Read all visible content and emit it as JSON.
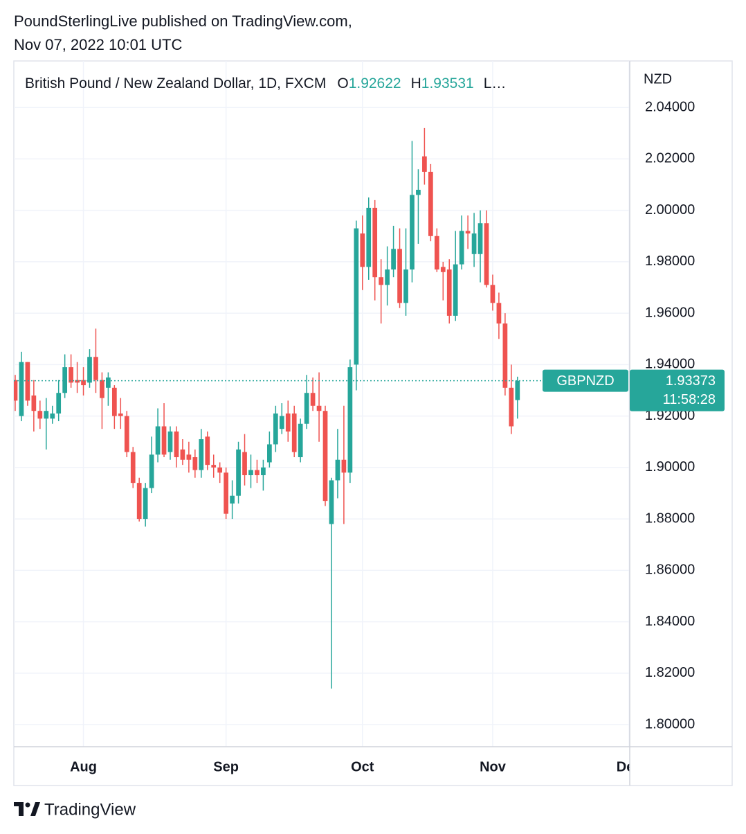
{
  "header": {
    "line1": "PoundSterlingLive published on TradingView.com,",
    "line2": "Nov 07, 2022 10:01 UTC"
  },
  "chart_data": {
    "type": "candlestick",
    "title": "British Pound / New Zealand Dollar, 1D, FXCM",
    "ohlc_labels": [
      "O",
      "H",
      "L…"
    ],
    "y_axis_label": "NZD",
    "symbol": "GBPNZD",
    "countdown": "11:58:28",
    "up_color": "#26a69a",
    "down_color": "#ef5350",
    "open": [
      1.934,
      1.92,
      1.941,
      1.928,
      1.922,
      1.919,
      1.919,
      1.921,
      1.929,
      1.939,
      1.934,
      1.934,
      1.933,
      1.943,
      1.934,
      1.931,
      1.931,
      1.921,
      1.92,
      1.906,
      1.894,
      1.88,
      1.892,
      1.905,
      1.916,
      1.906,
      1.914,
      1.907,
      1.905,
      1.904,
      1.899,
      1.912,
      1.901,
      1.9,
      1.898,
      1.886,
      1.889,
      1.906,
      1.897,
      1.899,
      1.897,
      1.902,
      1.909,
      1.915,
      1.921,
      1.921,
      1.904,
      1.917,
      1.929,
      1.924,
      1.922,
      1.878,
      1.895,
      1.903,
      1.898,
      1.94,
      1.991,
      1.978,
      2.001,
      1.974,
      1.971,
      1.977,
      1.985,
      1.964,
      1.977,
      2.006,
      2.021,
      2.015,
      1.99,
      1.978,
      1.977,
      1.959,
      1.979,
      1.992,
      1.983,
      1.983,
      1.995,
      1.971,
      1.964,
      1.956,
      1.931,
      1.92622
    ],
    "high": [
      1.936,
      1.945,
      1.941,
      1.934,
      1.926,
      1.927,
      1.924,
      1.934,
      1.944,
      1.944,
      1.941,
      1.939,
      1.946,
      1.954,
      1.937,
      1.937,
      1.932,
      1.927,
      1.922,
      1.908,
      1.896,
      1.894,
      1.912,
      1.923,
      1.925,
      1.916,
      1.916,
      1.911,
      1.91,
      1.907,
      1.915,
      1.914,
      1.905,
      1.902,
      1.9,
      1.895,
      1.91,
      1.913,
      1.905,
      1.903,
      1.903,
      1.914,
      1.924,
      1.925,
      1.926,
      1.924,
      1.919,
      1.936,
      1.935,
      1.937,
      1.924,
      1.896,
      1.915,
      1.924,
      1.942,
      1.996,
      1.998,
      2.005,
      2.004,
      1.981,
      1.986,
      1.994,
      1.993,
      1.993,
      2.027,
      2.016,
      2.032,
      2.018,
      1.993,
      1.98,
      1.981,
      1.992,
      1.998,
      1.998,
      1.999,
      2.0,
      2.0,
      1.975,
      1.968,
      1.96,
      1.94,
      1.93531
    ],
    "low": [
      1.922,
      1.918,
      1.924,
      1.914,
      1.915,
      1.907,
      1.917,
      1.918,
      1.927,
      1.931,
      1.929,
      1.928,
      1.931,
      1.929,
      1.915,
      1.924,
      1.915,
      1.915,
      1.904,
      1.892,
      1.879,
      1.877,
      1.89,
      1.902,
      1.904,
      1.903,
      1.9,
      1.901,
      1.898,
      1.896,
      1.896,
      1.899,
      1.896,
      1.894,
      1.88,
      1.88,
      1.886,
      1.893,
      1.892,
      1.894,
      1.891,
      1.9,
      1.906,
      1.913,
      1.91,
      1.904,
      1.902,
      1.915,
      1.922,
      1.91,
      1.885,
      1.814,
      1.888,
      1.878,
      1.894,
      1.93,
      1.969,
      1.973,
      1.965,
      1.956,
      1.963,
      1.974,
      1.962,
      1.959,
      1.972,
      1.987,
      2.01,
      1.988,
      1.976,
      1.965,
      1.956,
      1.957,
      1.977,
      1.985,
      1.978,
      1.972,
      1.97,
      1.961,
      1.95,
      1.928,
      1.913,
      1.919
    ],
    "close": [
      1.926,
      1.941,
      1.926,
      1.922,
      1.919,
      1.922,
      1.921,
      1.929,
      1.939,
      1.933,
      1.933,
      1.932,
      1.943,
      1.934,
      1.927,
      1.935,
      1.92,
      1.92,
      1.906,
      1.894,
      1.88,
      1.892,
      1.905,
      1.916,
      1.905,
      1.914,
      1.904,
      1.903,
      1.903,
      1.899,
      1.911,
      1.901,
      1.9,
      1.898,
      1.882,
      1.889,
      1.907,
      1.897,
      1.899,
      1.897,
      1.9,
      1.909,
      1.921,
      1.92,
      1.914,
      1.906,
      1.917,
      1.929,
      1.924,
      1.922,
      1.887,
      1.895,
      1.903,
      1.898,
      1.939,
      1.993,
      1.978,
      2.001,
      1.974,
      1.971,
      1.977,
      1.985,
      1.964,
      1.977,
      2.006,
      2.008,
      2.015,
      1.99,
      1.977,
      1.976,
      1.959,
      1.979,
      1.992,
      1.991,
      1.991,
      1.995,
      1.971,
      1.964,
      1.956,
      1.931,
      1.916,
      1.93373
    ],
    "xlim": [
      -0.22,
      99.1
    ],
    "xticks": [
      {
        "value": 11,
        "label": "Aug"
      },
      {
        "value": 34,
        "label": "Sep"
      },
      {
        "value": 56,
        "label": "Oct"
      },
      {
        "value": 77,
        "label": "Nov"
      },
      {
        "value": 99,
        "label": "Dec"
      }
    ],
    "ylim": [
      1.7914,
      2.0581
    ],
    "yticks": [
      {
        "value": 1.8,
        "label": "1.80000"
      },
      {
        "value": 1.82,
        "label": "1.82000"
      },
      {
        "value": 1.84,
        "label": "1.84000"
      },
      {
        "value": 1.86,
        "label": "1.86000"
      },
      {
        "value": 1.88,
        "label": "1.88000"
      },
      {
        "value": 1.9,
        "label": "1.90000"
      },
      {
        "value": 1.92,
        "label": "1.92000"
      },
      {
        "value": 1.94,
        "label": "1.94000"
      },
      {
        "value": 1.96,
        "label": "1.96000"
      },
      {
        "value": 1.98,
        "label": "1.98000"
      },
      {
        "value": 2.0,
        "label": "2.00000"
      },
      {
        "value": 2.02,
        "label": "2.02000"
      },
      {
        "value": 2.04,
        "label": "2.04000"
      }
    ],
    "grid": true
  },
  "footer": {
    "brand": "TradingView"
  }
}
